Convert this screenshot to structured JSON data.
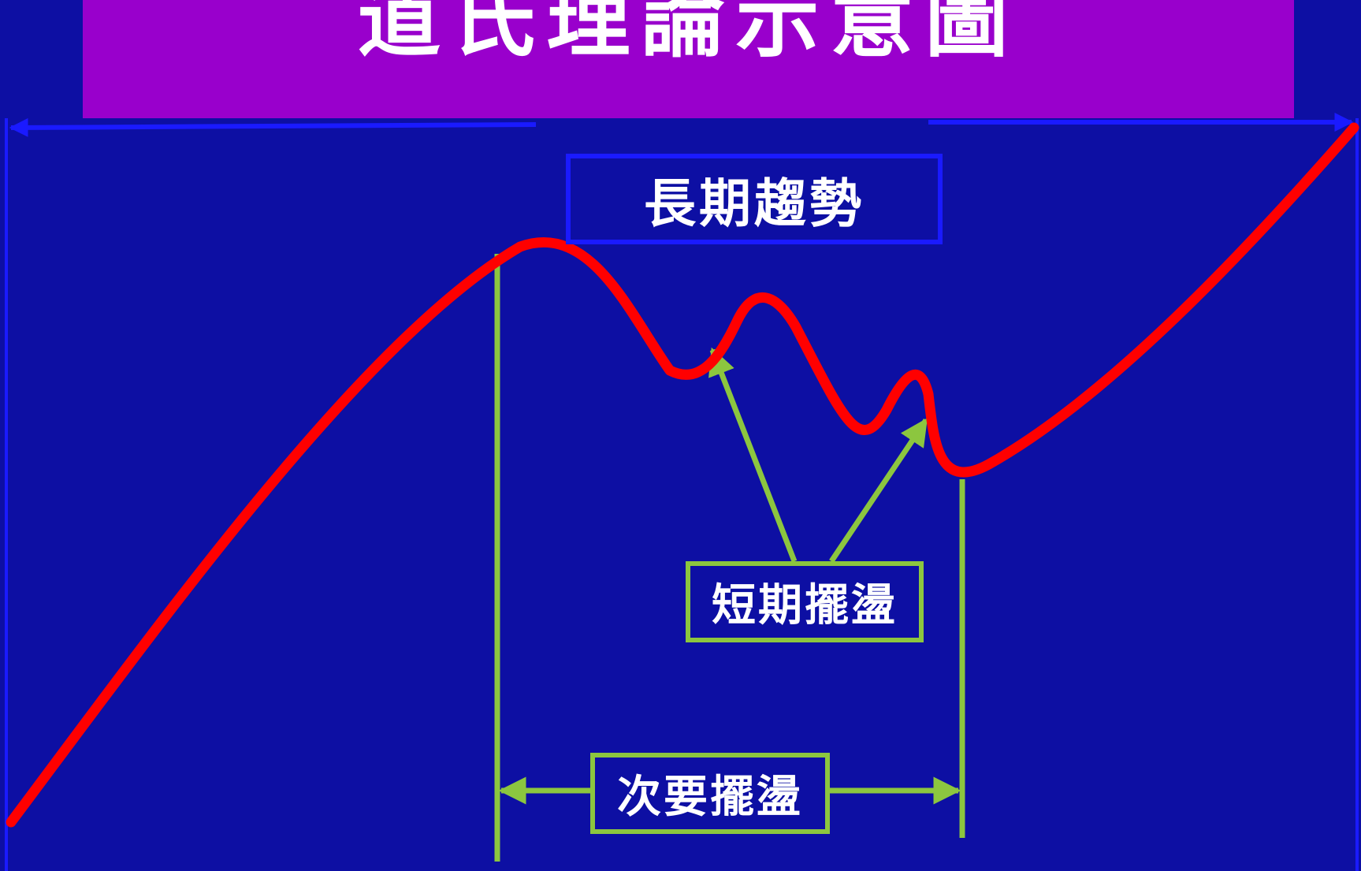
{
  "title": "道氏理論示意圖",
  "labels": {
    "long_term": "長期趨勢",
    "short_term": "短期擺盪",
    "secondary": "次要擺盪"
  },
  "colors": {
    "background": "#0d0fa3",
    "title_bar": "#9900cc",
    "trend_line": "#ff0000",
    "annotation": "#8cc63f",
    "long_term_marker": "#1a1aff"
  }
}
